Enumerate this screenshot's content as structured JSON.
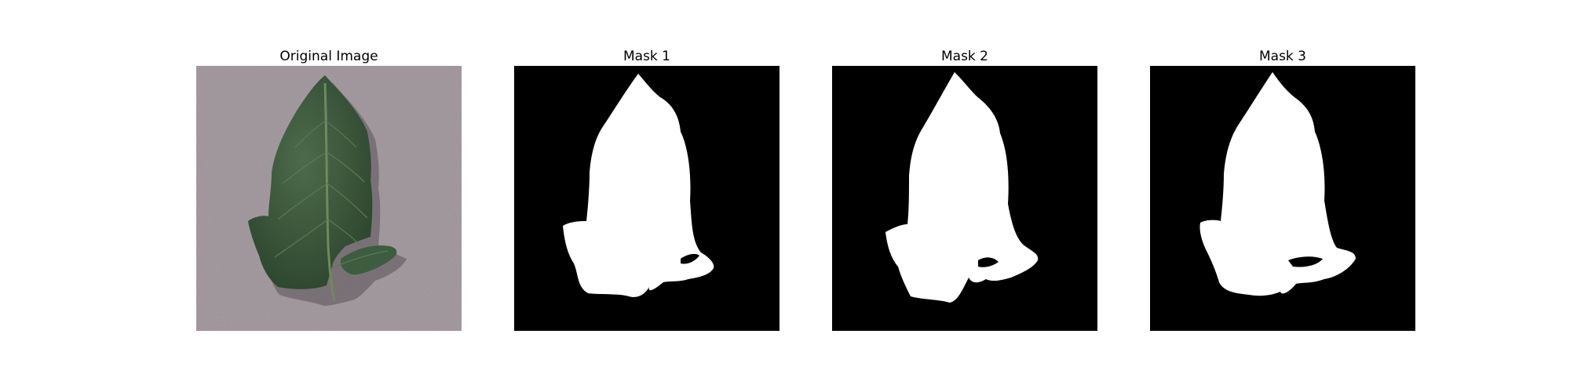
{
  "figure": {
    "panels": [
      {
        "title": "Original Image",
        "content": "leaf-photo"
      },
      {
        "title": "Mask 1",
        "content": "mask"
      },
      {
        "title": "Mask 2",
        "content": "mask"
      },
      {
        "title": "Mask 3",
        "content": "mask"
      }
    ]
  },
  "colors": {
    "background": "#ffffff",
    "mask_background": "#000000",
    "mask_foreground": "#ffffff",
    "backdrop": "#a89ea4",
    "leaf": "#3c5a3e",
    "leaf_dark": "#243a26",
    "vein": "#6f8a5a"
  }
}
